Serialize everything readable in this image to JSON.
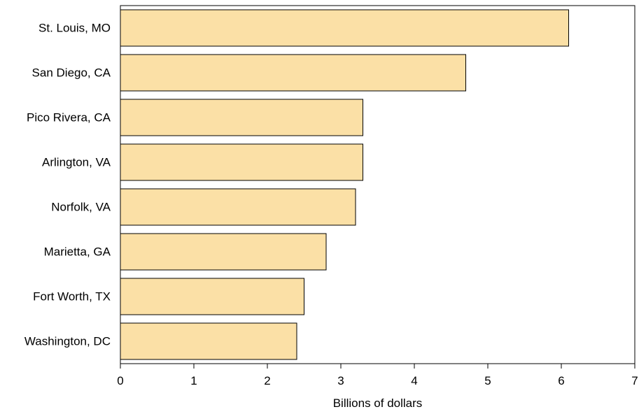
{
  "chart_data": {
    "type": "bar",
    "orientation": "horizontal",
    "categories": [
      "St. Louis, MO",
      "San Diego, CA",
      "Pico Rivera, CA",
      "Arlington, VA",
      "Norfolk, VA",
      "Marietta, GA",
      "Fort Worth, TX",
      "Washington, DC"
    ],
    "values": [
      6.1,
      4.7,
      3.3,
      3.3,
      3.2,
      2.8,
      2.5,
      2.4
    ],
    "title": "",
    "xlabel": "Billions of dollars",
    "ylabel": "",
    "xlim": [
      0,
      7
    ],
    "x_ticks": [
      0,
      1,
      2,
      3,
      4,
      5,
      6,
      7
    ],
    "grid": false,
    "legend": "none",
    "bar_color": "#fbe0a6",
    "bar_edge_color": "#000000"
  }
}
